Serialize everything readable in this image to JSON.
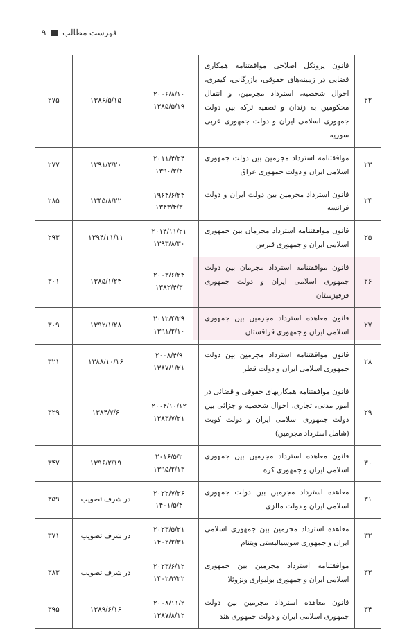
{
  "header": {
    "text": "فهرست مطالب",
    "page_num": "۹"
  },
  "table": {
    "rows": [
      {
        "num": "۲۲",
        "title": "قانون پروتکل اصلاحی موافقتنامه همکاری قضایی در زمینه‌های حقوقی، بازرگانی، کیفری، احوال شخصیه، استرداد مجرمین، و انتقال محکومین به زندان و تصفیه ترکه بین دولت جمهوری اسلامی ایران و دولت جمهوری عربی سوریه",
        "date_a1": "۲۰۰۶/۸/۱۰",
        "date_a2": "۱۳۸۵/۵/۱۹",
        "date_b": "۱۳۸۶/۵/۱۵",
        "page": "۲۷۵"
      },
      {
        "num": "۲۳",
        "title": "موافقتنامه استرداد مجرمین بین دولت جمهوری اسلامی ایران و دولت جمهوری عراق",
        "date_a1": "۲۰۱۱/۴/۲۴",
        "date_a2": "۱۳۹۰/۲/۴",
        "date_b": "۱۳۹۱/۲/۲۰",
        "page": "۲۷۷"
      },
      {
        "num": "۲۴",
        "title": "قانون استرداد مجرمین بین دولت ایران و دولت فرانسه",
        "date_a1": "۱۹۶۴/۶/۲۴",
        "date_a2": "۱۳۴۳/۴/۳",
        "date_b": "۱۳۴۵/۸/۲۲",
        "page": "۲۸۵"
      },
      {
        "num": "۲۵",
        "title": "قانون موافقتنامه استرداد مجرمان بین جمهوری اسلامی ایران و جمهوری قبرس",
        "date_a1": "۲۰۱۴/۱۱/۲۱",
        "date_a2": "۱۳۹۳/۸/۳۰",
        "date_b": "۱۳۹۴/۱۱/۱۱",
        "page": "۲۹۳"
      },
      {
        "num": "۲۶",
        "title": "قانون موافقتنامه استرداد مجرمان بین دولت جمهوری اسلامی ایران و دولت جمهوری قرقیزستان",
        "date_a1": "۲۰۰۳/۶/۲۴",
        "date_a2": "۱۳۸۲/۴/۳",
        "date_b": "۱۳۸۵/۱/۲۴",
        "page": "۳۰۱"
      },
      {
        "num": "۲۷",
        "title": "قانون معاهده استرداد مجرمین بین جمهوری اسلامی ایران و جمهوری قزاقستان",
        "date_a1": "۲۰۱۲/۴/۲۹",
        "date_a2": "۱۳۹۱/۲/۱۰",
        "date_b": "۱۳۹۲/۱/۲۸",
        "page": "۳۰۹"
      },
      {
        "num": "۲۸",
        "title": "قانون موافقتنامه استرداد مجرمین بین دولت جمهوری اسلامی ایران و دولت قطر",
        "date_a1": "۲۰۰۸/۴/۹",
        "date_a2": "۱۳۸۷/۱/۲۱",
        "date_b": "۱۳۸۸/۱۰/۱۶",
        "page": "۳۲۱"
      },
      {
        "num": "۲۹",
        "title": "قانون موافقتنامه همکاریهای حقوقی و قضائی در امور مدنی، تجاری، احوال شخصیه و جزائی بین دولت جمهوری اسلامی ایران و دولت کویت (شامل استرداد مجرمین)",
        "date_a1": "۲۰۰۴/۱۰/۱۲",
        "date_a2": "۱۳۸۳/۷/۲۱",
        "date_b": "۱۳۸۴/۷/۶",
        "page": "۳۲۹"
      },
      {
        "num": "۳۰",
        "title": "قانون معاهده استرداد مجرمین بین جمهوری اسلامی ایران و جمهوری کره",
        "date_a1": "۲۰۱۶/۵/۲",
        "date_a2": "۱۳۹۵/۲/۱۳",
        "date_b": "۱۳۹۶/۲/۱۹",
        "page": "۳۴۷"
      },
      {
        "num": "۳۱",
        "title": "معاهده استرداد مجرمین بین دولت جمهوری اسلامی ایران و دولت مالزی",
        "date_a1": "۲۰۲۲/۷/۲۶",
        "date_a2": "۱۴۰۱/۵/۴",
        "date_b": "در شرف تصویب",
        "page": "۳۵۹"
      },
      {
        "num": "۳۲",
        "title": "معاهده استرداد مجرمین بین جمهوری اسلامی ایران و جمهوری سوسیالیستی ویتنام",
        "date_a1": "۲۰۲۳/۵/۲۱",
        "date_a2": "۱۴۰۲/۲/۳۱",
        "date_b": "در شرف تصویب",
        "page": "۳۷۱"
      },
      {
        "num": "۳۳",
        "title": "موافقتنامه استرداد مجرمین بین جمهوری اسلامی ایران و جمهوری بولیواری ونزوئلا",
        "date_a1": "۲۰۲۳/۶/۱۲",
        "date_a2": "۱۴۰۲/۳/۲۲",
        "date_b": "در شرف تصویب",
        "page": "۳۸۳"
      },
      {
        "num": "۳۴",
        "title": "قانون معاهده استرداد مجرمین بین دولت جمهوری اسلامی ایران و دولت جمهوری هند",
        "date_a1": "۲۰۰۸/۱۱/۲",
        "date_a2": "۱۳۸۷/۸/۱۲",
        "date_b": "۱۳۸۹/۶/۱۶",
        "page": "۳۹۵"
      }
    ]
  }
}
